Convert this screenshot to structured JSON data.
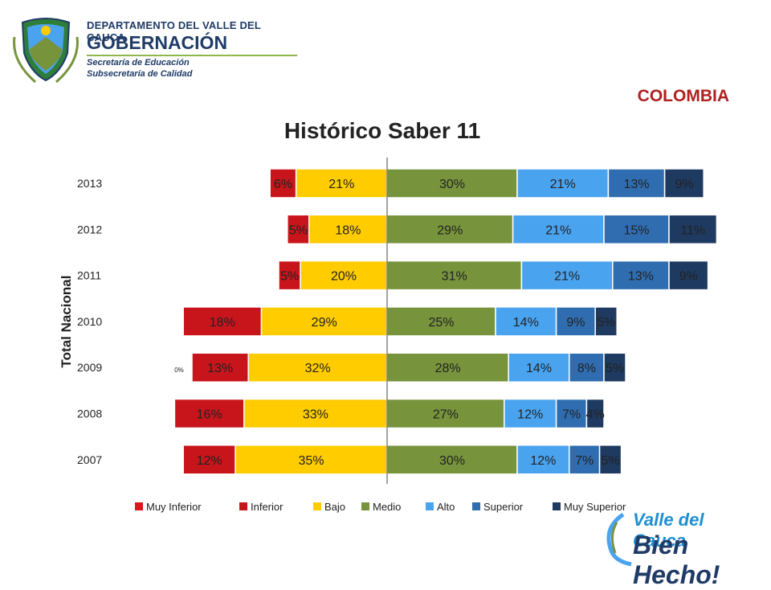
{
  "header": {
    "line1": "DEPARTAMENTO DEL VALLE DEL CAUCA",
    "line2": "GOBERNACIÓN",
    "line3": "Secretaría de Educación",
    "line4": "Subsecretaría de Calidad",
    "country": "COLOMBIA"
  },
  "brand": {
    "line1": "Valle del Cauca",
    "line2": "Bien Hecho!"
  },
  "chart_data": {
    "type": "bar",
    "orientation": "horizontal-diverging",
    "title": "Histórico Saber 11",
    "ylabel": "Total Nacional",
    "categories": [
      "2013",
      "2012",
      "2011",
      "2010",
      "2009",
      "2008",
      "2007"
    ],
    "series": [
      {
        "name": "Muy Inferior",
        "color": "#e0141c",
        "values": [
          0,
          0,
          0,
          0,
          0,
          0,
          0
        ],
        "labels": [
          "",
          "",
          "",
          "",
          "0%",
          "",
          ""
        ]
      },
      {
        "name": "Inferior",
        "color": "#c8151c",
        "values": [
          6,
          5,
          5,
          18,
          13,
          16,
          12
        ],
        "labels": [
          "6%",
          "5%",
          "5%",
          "18%",
          "13%",
          "16%",
          "12%"
        ]
      },
      {
        "name": "Bajo",
        "color": "#ffcc00",
        "values": [
          21,
          18,
          20,
          29,
          32,
          33,
          35
        ],
        "labels": [
          "21%",
          "18%",
          "20%",
          "29%",
          "32%",
          "33%",
          "35%"
        ]
      },
      {
        "name": "Medio",
        "color": "#77933c",
        "values": [
          30,
          29,
          31,
          25,
          28,
          27,
          30
        ],
        "labels": [
          "30%",
          "29%",
          "31%",
          "25%",
          "28%",
          "27%",
          "30%"
        ]
      },
      {
        "name": "Alto",
        "color": "#4aa3ee",
        "values": [
          21,
          21,
          21,
          14,
          14,
          12,
          12
        ],
        "labels": [
          "21%",
          "21%",
          "21%",
          "14%",
          "14%",
          "12%",
          "12%"
        ]
      },
      {
        "name": "Superior",
        "color": "#2f6db0",
        "values": [
          13,
          15,
          13,
          9,
          8,
          7,
          7
        ],
        "labels": [
          "13%",
          "15%",
          "13%",
          "9%",
          "8%",
          "7%",
          "7%"
        ]
      },
      {
        "name": "Muy Superior",
        "color": "#1f3a60",
        "values": [
          9,
          11,
          9,
          5,
          5,
          4,
          5
        ],
        "labels": [
          "9%",
          "11%",
          "9%",
          "5%",
          "5%",
          "4%",
          "5%"
        ]
      }
    ],
    "legend_position": "bottom",
    "grid": false
  }
}
